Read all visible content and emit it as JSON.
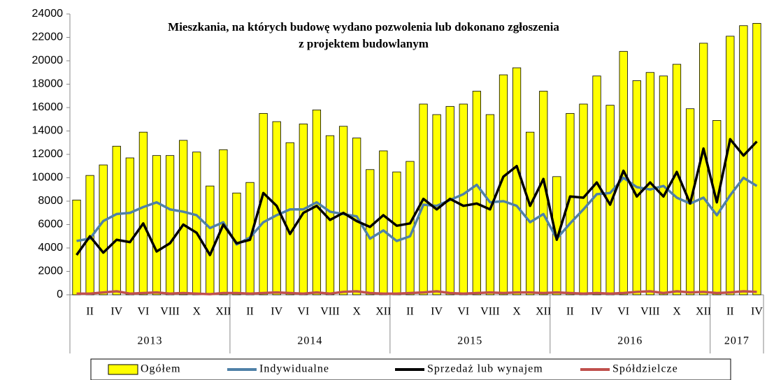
{
  "chart_data": {
    "type": "bar",
    "title": [
      "Mieszkania, na których budowę wydano pozwolenia lub dokonano zgłoszenia",
      "z projektem budowlanym"
    ],
    "category_groups": [
      {
        "name": "2013",
        "categories": [
          null,
          "II",
          null,
          "IV",
          null,
          "VI",
          null,
          "VIII",
          null,
          "X",
          null,
          "XII"
        ]
      },
      {
        "name": "2014",
        "categories": [
          null,
          "II",
          null,
          "IV",
          null,
          "VI",
          null,
          "VIII",
          null,
          "X",
          null,
          "XII"
        ]
      },
      {
        "name": "2015",
        "categories": [
          null,
          "II",
          null,
          "IV",
          null,
          "VI",
          null,
          "VIII",
          null,
          "X",
          null,
          "XII"
        ]
      },
      {
        "name": "2016",
        "categories": [
          null,
          "II",
          null,
          "IV",
          null,
          "VI",
          null,
          "VIII",
          null,
          "X",
          null,
          "XII"
        ]
      },
      {
        "name": "2017",
        "categories": [
          null,
          "II",
          null,
          "IV"
        ]
      }
    ],
    "series": [
      {
        "name": "Ogółem",
        "type": "bar",
        "color": "#ffff00",
        "values": [
          8100,
          10200,
          11100,
          12700,
          11700,
          13900,
          11900,
          11900,
          13200,
          12200,
          9300,
          12400,
          8700,
          9600,
          15500,
          14800,
          13000,
          14600,
          15800,
          13600,
          14400,
          13400,
          10700,
          12300,
          10500,
          11400,
          16300,
          15400,
          16100,
          16300,
          17400,
          15400,
          18800,
          19400,
          13900,
          17400,
          10100,
          15500,
          16300,
          18700,
          16200,
          20800,
          18300,
          19000,
          18700,
          19700,
          15900,
          21500,
          14900,
          22100,
          23000,
          23200
        ]
      },
      {
        "name": "Indywidualne",
        "type": "line",
        "color": "#4f81a8",
        "values": [
          4600,
          4800,
          6300,
          6900,
          7000,
          7500,
          7900,
          7300,
          7100,
          6800,
          5700,
          6200,
          4300,
          4900,
          6200,
          6800,
          7300,
          7300,
          7900,
          7100,
          6900,
          6700,
          4800,
          5500,
          4600,
          5000,
          7700,
          7600,
          8100,
          8600,
          9400,
          7900,
          8000,
          7600,
          6200,
          6900,
          4800,
          6100,
          7300,
          8600,
          8700,
          10000,
          9200,
          9000,
          9300,
          8300,
          7800,
          8300,
          6800,
          8500,
          10000,
          9300
        ]
      },
      {
        "name": "Sprzedaż lub wynajem",
        "type": "line",
        "color": "#000000",
        "values": [
          3400,
          5000,
          3600,
          4700,
          4500,
          6100,
          3700,
          4400,
          6000,
          5300,
          3400,
          6000,
          4400,
          4700,
          8700,
          7600,
          5200,
          7000,
          7600,
          6400,
          7000,
          6300,
          5800,
          6800,
          5900,
          6100,
          8200,
          7300,
          8200,
          7600,
          7800,
          7300,
          10100,
          11000,
          7600,
          9900,
          4700,
          8400,
          8300,
          9600,
          7700,
          10600,
          8400,
          9600,
          8400,
          10500,
          7800,
          12500,
          7900,
          13300,
          11900,
          13100
        ]
      },
      {
        "name": "Spółdzielcze",
        "type": "line",
        "color": "#c0504d",
        "values": [
          100,
          100,
          200,
          300,
          100,
          150,
          200,
          100,
          150,
          100,
          50,
          150,
          150,
          100,
          150,
          200,
          150,
          100,
          200,
          100,
          250,
          300,
          150,
          100,
          100,
          150,
          200,
          300,
          150,
          100,
          150,
          200,
          150,
          200,
          200,
          150,
          200,
          150,
          100,
          150,
          100,
          150,
          250,
          300,
          150,
          300,
          200,
          250,
          150,
          200,
          300,
          250
        ]
      }
    ],
    "ylim": [
      0,
      24000
    ],
    "yticks": [
      0,
      2000,
      4000,
      6000,
      8000,
      10000,
      12000,
      14000,
      16000,
      18000,
      20000,
      22000,
      24000
    ]
  }
}
